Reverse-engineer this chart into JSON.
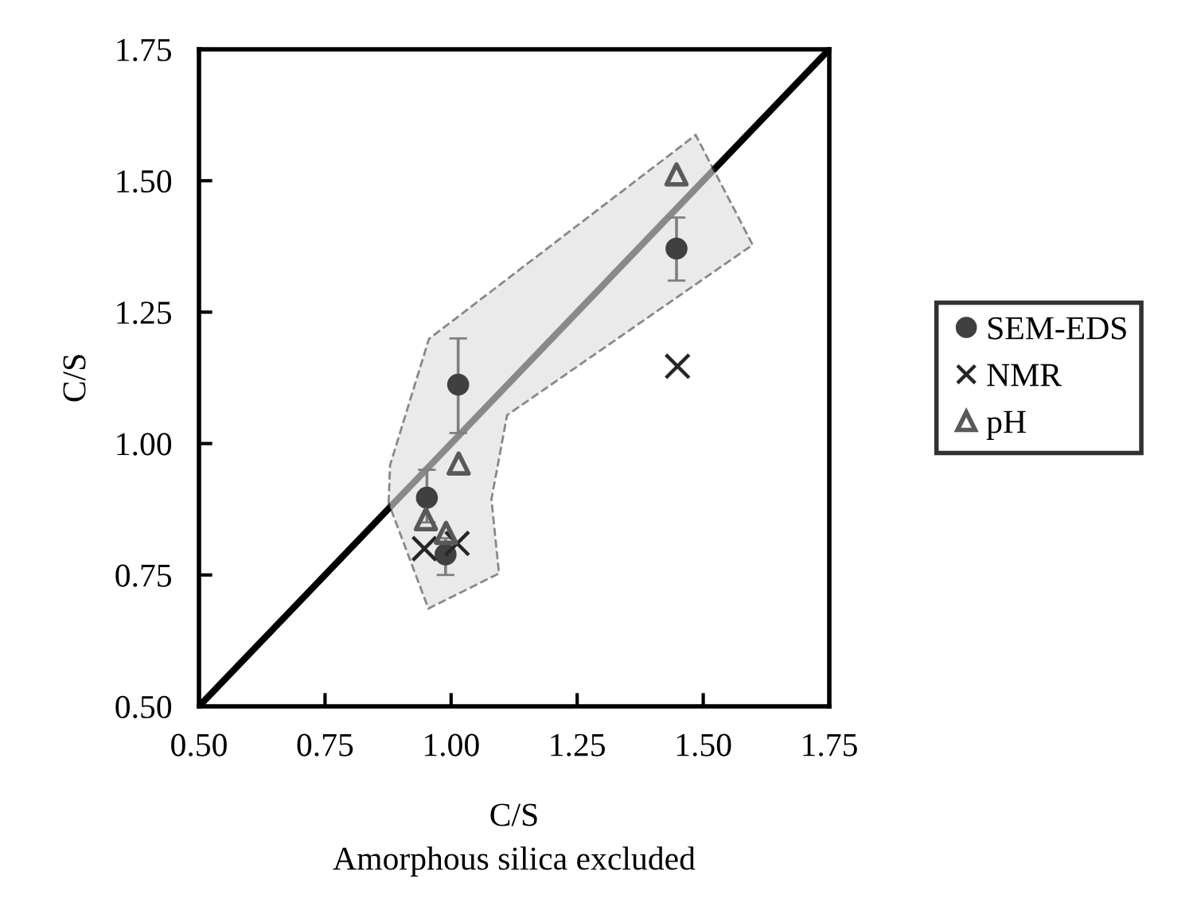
{
  "chart_data": {
    "type": "scatter",
    "xlabel": "C/S\nAmorphous silica excluded",
    "ylabel": "C/S",
    "xlim": [
      0.5,
      1.75
    ],
    "ylim": [
      0.5,
      1.75
    ],
    "xticks": [
      {
        "value": 0.5,
        "label": "0.50"
      },
      {
        "value": 0.75,
        "label": "0.75"
      },
      {
        "value": 1.0,
        "label": "1.00"
      },
      {
        "value": 1.25,
        "label": "1.25"
      },
      {
        "value": 1.5,
        "label": "1.50"
      },
      {
        "value": 1.75,
        "label": "1.75"
      }
    ],
    "yticks": [
      {
        "value": 0.5,
        "label": "0.50"
      },
      {
        "value": 0.75,
        "label": "0.75"
      },
      {
        "value": 1.0,
        "label": "1.00"
      },
      {
        "value": 1.25,
        "label": "1.25"
      },
      {
        "value": 1.5,
        "label": "1.50"
      },
      {
        "value": 1.75,
        "label": "1.75"
      }
    ],
    "grid": false,
    "legend": "right",
    "series": [
      {
        "type": "line",
        "color": "#000000",
        "x": [
          0.5,
          1.75
        ],
        "values": [
          0.5,
          1.75
        ],
        "marker": "none",
        "line_style": "solid"
      },
      {
        "type": "area",
        "color": "#dedede",
        "x": [
          0.876,
          0.879,
          0.956,
          1.485,
          1.598,
          1.111,
          1.08,
          1.095,
          0.955
        ],
        "values": [
          0.887,
          0.959,
          1.199,
          1.587,
          1.378,
          1.054,
          0.894,
          0.753,
          0.686
        ],
        "line_style": "dashed"
      },
      {
        "name": "SEM-EDS",
        "color": "#404040",
        "marker": "circle",
        "x": [
          1.014,
          0.952,
          0.989,
          1.447
        ],
        "values": [
          1.112,
          0.897,
          0.789,
          1.371
        ],
        "errors": [
          [
            1.02,
            1.2
          ],
          [
            0.85,
            0.95
          ],
          [
            0.75,
            0.82
          ],
          [
            1.31,
            1.43
          ]
        ]
      },
      {
        "name": "NMR",
        "color": "#262626",
        "marker": "cross",
        "x": [
          0.947,
          1.012,
          1.449
        ],
        "values": [
          0.8,
          0.81,
          1.147
        ]
      },
      {
        "name": "pH",
        "color": "#595959",
        "marker": "triangle",
        "x": [
          0.95,
          0.99,
          1.015,
          1.447
        ],
        "values": [
          0.856,
          0.83,
          0.962,
          1.512
        ]
      }
    ]
  }
}
